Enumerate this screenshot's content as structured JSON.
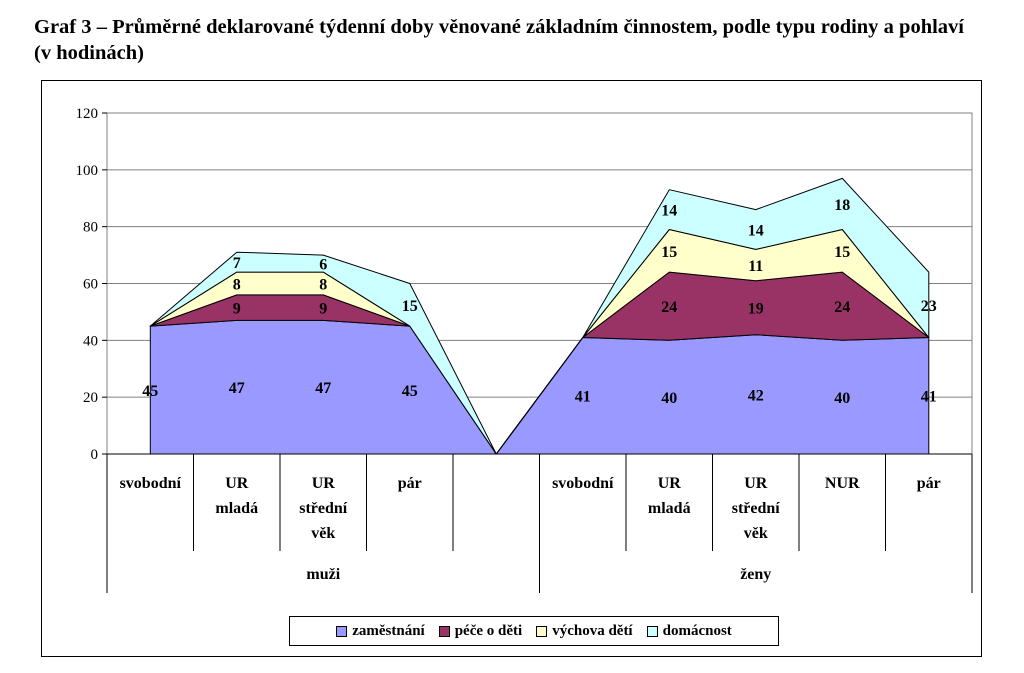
{
  "title": "Graf 3 – Průměrné deklarované týdenní doby věnované základním činnostem, podle typu rodiny a pohlaví (v hodinách)",
  "chart_data": {
    "type": "area",
    "stacked": true,
    "categories": [
      {
        "label": [
          "svobodní"
        ],
        "group": "muži"
      },
      {
        "label": [
          "UR",
          "mladá"
        ],
        "group": "muži"
      },
      {
        "label": [
          "UR",
          "střední",
          "věk"
        ],
        "group": "muži"
      },
      {
        "label": [
          "pár"
        ],
        "group": "muži"
      },
      {
        "label": [
          ""
        ],
        "group": "gap"
      },
      {
        "label": [
          "svobodní"
        ],
        "group": "ženy"
      },
      {
        "label": [
          "UR",
          "mladá"
        ],
        "group": "ženy"
      },
      {
        "label": [
          "UR",
          "střední",
          "věk"
        ],
        "group": "ženy"
      },
      {
        "label": [
          "NUR"
        ],
        "group": "ženy"
      },
      {
        "label": [
          "pár"
        ],
        "group": "ženy"
      }
    ],
    "groups": [
      "muži",
      "ženy"
    ],
    "series": [
      {
        "name": "zaměstnání",
        "color": "#9999ff",
        "values": [
          45,
          47,
          47,
          45,
          0,
          41,
          40,
          42,
          40,
          41
        ],
        "labels": [
          "45",
          "47",
          "47",
          "45",
          "",
          "41",
          "40",
          "42",
          "40",
          "41"
        ]
      },
      {
        "name": "péče o děti",
        "color": "#993366",
        "values": [
          0,
          9,
          9,
          0,
          0,
          0,
          24,
          19,
          24,
          0
        ],
        "labels": [
          "",
          "9",
          "9",
          "",
          "",
          "",
          "24",
          "19",
          "24",
          ""
        ]
      },
      {
        "name": "výchova dětí",
        "color": "#ffffcc",
        "values": [
          0,
          8,
          8,
          0,
          0,
          0,
          15,
          11,
          15,
          0
        ],
        "labels": [
          "",
          "8",
          "8",
          "",
          "",
          "",
          "15",
          "11",
          "15",
          ""
        ]
      },
      {
        "name": "domácnost",
        "color": "#ccffff",
        "values": [
          0,
          7,
          6,
          15,
          0,
          0,
          14,
          14,
          18,
          23
        ],
        "labels": [
          "",
          "7",
          "6",
          "15",
          "",
          "",
          "14",
          "14",
          "18",
          "23"
        ]
      }
    ],
    "ylim": [
      0,
      120
    ],
    "yticks": [
      0,
      20,
      40,
      60,
      80,
      100,
      120
    ],
    "grid": true,
    "legend": "bottom"
  }
}
